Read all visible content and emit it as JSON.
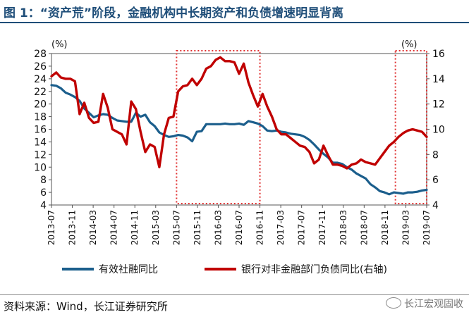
{
  "header": {
    "title": "图 1：“资产荒”阶段，金融机构中长期资产和负债增速明显背离"
  },
  "footer": {
    "source": "资料来源：Wind，长江证券研究所",
    "watermark": "长江宏观固收"
  },
  "colors": {
    "series_left": "#1b5e8c",
    "series_right": "#c00000",
    "highlight": "#e03030",
    "title": "#1f4e79"
  },
  "chart_data": {
    "type": "line",
    "left_axis": {
      "min": 4,
      "max": 28,
      "ticks": [
        4,
        6,
        8,
        10,
        12,
        14,
        16,
        18,
        20,
        22,
        24,
        26,
        28
      ],
      "unit": "(%)"
    },
    "right_axis": {
      "min": 4,
      "max": 16,
      "ticks": [
        4,
        6,
        8,
        10,
        12,
        14,
        16
      ],
      "unit": "(%)"
    },
    "x_range": [
      "2013-07",
      "2019-07"
    ],
    "x_tick_labels": [
      "2013-07",
      "2013-11",
      "2014-03",
      "2014-07",
      "2014-11",
      "2015-03",
      "2015-07",
      "2015-11",
      "2016-03",
      "2016-07",
      "2016-11",
      "2017-03",
      "2017-07",
      "2017-11",
      "2018-03",
      "2018-07",
      "2018-11",
      "2019-03",
      "2019-07"
    ],
    "highlight_periods": [
      [
        "2015-07",
        "2016-11"
      ],
      [
        "2019-01",
        "2019-07"
      ]
    ],
    "series": [
      {
        "name": "有效社融同比",
        "axis": "left",
        "values": [
          23.0,
          22.9,
          22.5,
          21.8,
          21.5,
          21.1,
          20.5,
          19.3,
          18.6,
          17.9,
          18.2,
          18.4,
          18.3,
          17.8,
          17.4,
          17.3,
          17.2,
          17.2,
          18.6,
          18.0,
          18.3,
          17.1,
          16.5,
          15.5,
          15.1,
          14.8,
          14.9,
          15.1,
          15.0,
          14.7,
          14.1,
          15.6,
          15.7,
          16.8,
          16.8,
          16.8,
          16.8,
          16.9,
          16.8,
          16.8,
          16.9,
          16.7,
          17.3,
          17.1,
          16.9,
          16.5,
          15.8,
          15.7,
          15.8,
          15.6,
          15.5,
          15.3,
          15.2,
          15.1,
          14.8,
          14.3,
          13.6,
          12.8,
          12.1,
          11.5,
          10.7,
          10.7,
          10.5,
          10.0,
          9.6,
          9.0,
          8.6,
          8.2,
          7.3,
          6.8,
          6.2,
          6.0,
          5.7,
          6.0,
          5.9,
          5.8,
          6.0,
          6.0,
          6.1,
          6.3,
          6.4
        ]
      },
      {
        "name": "银行对非金融部门负债同比(右轴)",
        "axis": "right",
        "values": [
          14.2,
          14.5,
          14.1,
          14.0,
          14.0,
          13.8,
          11.2,
          12.1,
          10.9,
          10.5,
          10.6,
          12.8,
          11.7,
          10.0,
          9.8,
          9.6,
          8.8,
          12.2,
          11.6,
          9.8,
          8.2,
          8.8,
          8.6,
          7.0,
          9.6,
          10.9,
          11.0,
          13.0,
          13.4,
          13.5,
          14.0,
          13.5,
          14.0,
          14.8,
          15.0,
          15.5,
          15.7,
          15.4,
          15.4,
          15.3,
          14.4,
          15.2,
          13.7,
          12.7,
          11.8,
          12.8,
          11.8,
          11.0,
          10.0,
          9.6,
          9.6,
          9.3,
          9.0,
          8.7,
          8.6,
          8.2,
          7.3,
          7.6,
          8.7,
          7.9,
          7.2,
          7.2,
          7.1,
          6.9,
          7.2,
          7.3,
          7.6,
          7.4,
          7.3,
          7.2,
          7.7,
          8.2,
          8.7,
          9.0,
          9.4,
          9.7,
          9.9,
          10.0,
          9.9,
          9.8,
          9.4
        ]
      }
    ]
  }
}
